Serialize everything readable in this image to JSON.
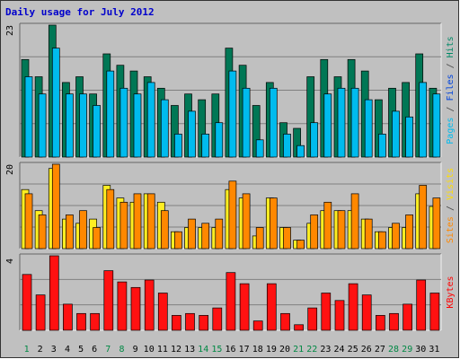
{
  "chart_data": {
    "type": "bar",
    "title": "Daily usage for July 2012",
    "categories": [
      "1",
      "2",
      "3",
      "4",
      "5",
      "6",
      "7",
      "8",
      "9",
      "10",
      "11",
      "12",
      "13",
      "14",
      "15",
      "16",
      "17",
      "18",
      "19",
      "20",
      "21",
      "22",
      "23",
      "24",
      "25",
      "26",
      "27",
      "28",
      "29",
      "30",
      "31"
    ],
    "weekend_days": [
      "1",
      "7",
      "8",
      "14",
      "15",
      "21",
      "22",
      "28",
      "29"
    ],
    "panels": [
      {
        "name": "hits-files-pages",
        "max_label": "23",
        "ylim": [
          0,
          23
        ],
        "side_labels": [
          {
            "text": "Pages",
            "color": "#00bbee"
          },
          {
            "text": " / ",
            "color": "#444444"
          },
          {
            "text": "Files",
            "color": "#0044dd"
          },
          {
            "text": " / ",
            "color": "#444444"
          },
          {
            "text": "Hits",
            "color": "#008866"
          }
        ],
        "series": [
          {
            "name": "Hits",
            "color": "#007755",
            "values": [
              17,
              14,
              23,
              13,
              14,
              11,
              18,
              16,
              15,
              14,
              12,
              9,
              11,
              10,
              11,
              19,
              16,
              9,
              13,
              6,
              5,
              14,
              17,
              14,
              17,
              15,
              10,
              12,
              13,
              18,
              12
            ]
          },
          {
            "name": "Files",
            "color": "#00bbee",
            "values": [
              14,
              11,
              19,
              11,
              11,
              9,
              15,
              12,
              11,
              13,
              10,
              4,
              8,
              4,
              6,
              15,
              12,
              3,
              12,
              4,
              2,
              6,
              11,
              12,
              12,
              10,
              4,
              8,
              7,
              13,
              11
            ]
          }
        ]
      },
      {
        "name": "visits-sites",
        "max_label": "20",
        "ylim": [
          0,
          20
        ],
        "side_labels": [
          {
            "text": "Sites",
            "color": "#ff8800"
          },
          {
            "text": " / ",
            "color": "#444444"
          },
          {
            "text": "Visits",
            "color": "#ffdd00"
          }
        ],
        "series": [
          {
            "name": "Visits",
            "color": "#ffee22",
            "values": [
              14,
              9,
              19,
              7,
              6,
              7,
              15,
              12,
              11,
              13,
              11,
              4,
              5,
              5,
              5,
              14,
              12,
              3,
              12,
              5,
              2,
              6,
              9,
              9,
              9,
              7,
              4,
              5,
              5,
              13,
              10
            ]
          },
          {
            "name": "Sites",
            "color": "#ff8800",
            "values": [
              13,
              8,
              20,
              8,
              9,
              5,
              14,
              11,
              13,
              13,
              9,
              4,
              7,
              6,
              7,
              16,
              13,
              5,
              12,
              5,
              2,
              8,
              11,
              9,
              13,
              7,
              4,
              6,
              8,
              15,
              12
            ]
          }
        ]
      },
      {
        "name": "kbytes",
        "max_label": "4",
        "ylim": [
          0,
          4
        ],
        "side_labels": [
          {
            "text": "KBytes",
            "color": "#ff0000"
          }
        ],
        "series": [
          {
            "name": "KBytes",
            "color": "#ff1111",
            "values": [
              3.0,
              1.9,
              4.0,
              1.4,
              0.9,
              0.9,
              3.2,
              2.6,
              2.3,
              2.7,
              2.0,
              0.8,
              0.9,
              0.8,
              1.2,
              3.1,
              2.5,
              0.5,
              2.5,
              0.9,
              0.3,
              1.2,
              2.0,
              1.6,
              2.5,
              1.9,
              0.8,
              0.9,
              1.4,
              2.7,
              2.0
            ]
          }
        ]
      }
    ]
  }
}
